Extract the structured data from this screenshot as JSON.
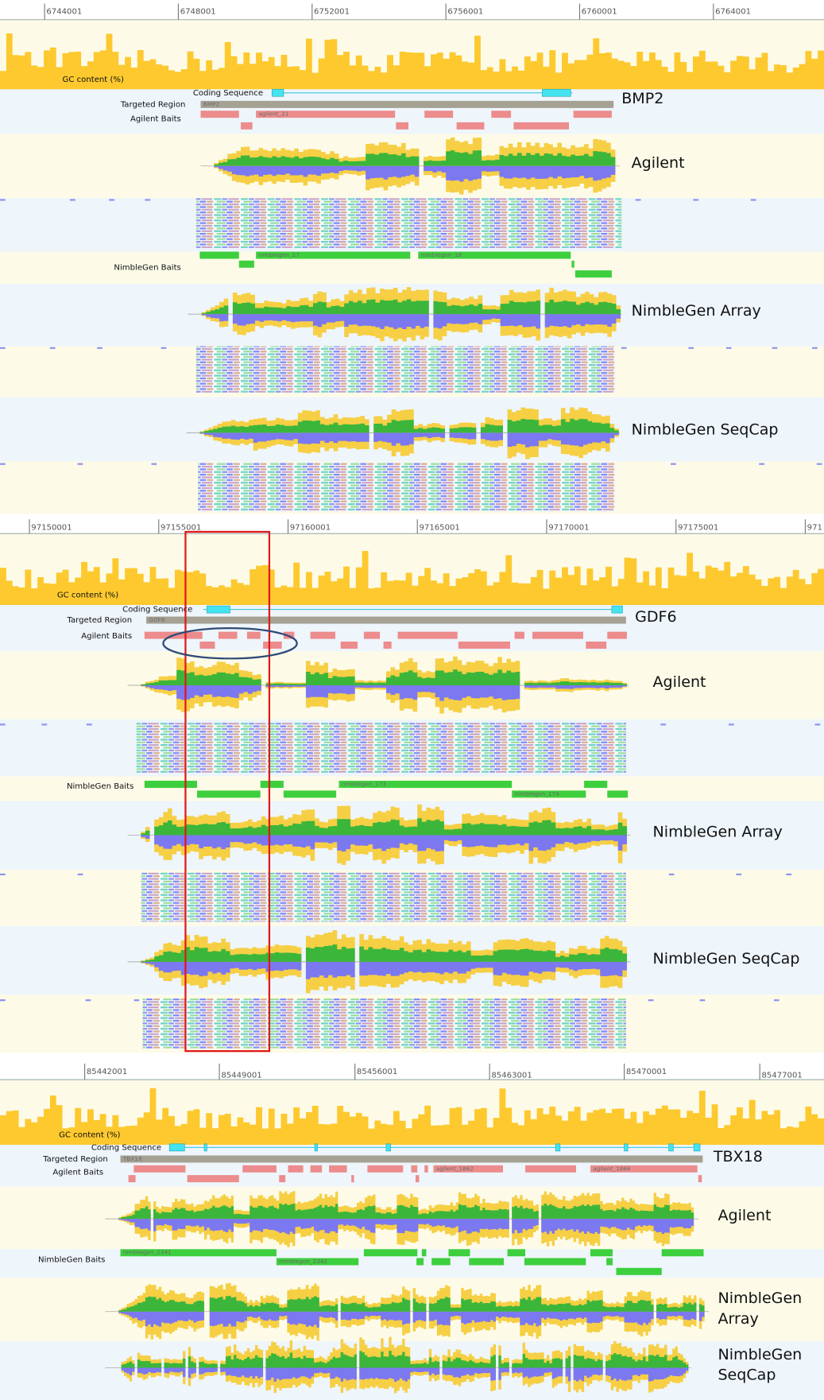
{
  "panels": [
    {
      "ruler": [
        "6744001",
        "6748001",
        "6752001",
        "6756001",
        "6760001",
        "6764001"
      ],
      "labels": {
        "gc": "GC content (%)",
        "coding": "Coding Sequence",
        "targeted": "Targeted Region",
        "agilent_baits": "Agilent Baits",
        "nimblegen_baits": "NimbleGen Baits"
      },
      "targeted_name": "BMP2",
      "gene": "BMP2",
      "bait_labels": [
        "agilent_21",
        "nimblegen_17",
        "nimblegen_18"
      ],
      "coverage_labels": [
        [
          "Agilent"
        ],
        [
          "NimbleGen Array"
        ],
        [
          "NimbleGen SeqCap"
        ]
      ]
    },
    {
      "ruler": [
        "97150001",
        "97155001",
        "97160001",
        "97165001",
        "97170001",
        "97175001",
        "971"
      ],
      "labels": {
        "gc": "GC content (%)",
        "coding": "Coding Sequence",
        "targeted": "Targeted Region",
        "agilent_baits": "Agilent Baits",
        "nimblegen_baits": "NimbleGen Baits"
      },
      "targeted_name": "GDF6",
      "gene": "GDF6",
      "bait_labels": [
        "nimblegen_173",
        "nimblegen_174"
      ],
      "coverage_labels": [
        [
          "Agilent"
        ],
        [
          "NimbleGen Array"
        ],
        [
          "NimbleGen SeqCap"
        ]
      ]
    },
    {
      "ruler": [
        "85442001",
        "85449001",
        "85456001",
        "85463001",
        "85470001",
        "85477001"
      ],
      "labels": {
        "gc": "GC content (%)",
        "coding": "Coding Sequence",
        "targeted": "Targeted Region",
        "agilent_baits": "Agilent Baits",
        "nimblegen_baits": "NimbleGen Baits"
      },
      "targeted_name": "TBX18",
      "gene": "TBX18",
      "bait_labels": [
        "agilent_1862",
        "agilent_1866",
        "nimblegen_2341",
        "nimblegen_2342"
      ],
      "coverage_labels": [
        [
          "Agilent"
        ],
        [
          "NimbleGen",
          "Array"
        ],
        [
          "NimbleGen",
          "SeqCap"
        ]
      ]
    }
  ]
}
